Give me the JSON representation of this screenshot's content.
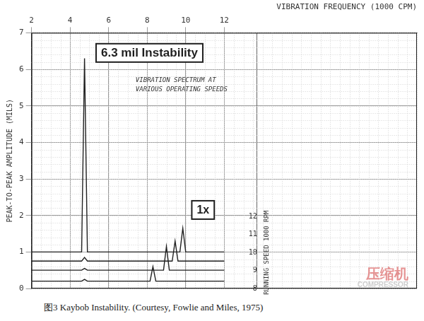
{
  "chart_data": {
    "type": "line",
    "caption": "图3 Kaybob Instability. (Courtesy, Fowlie and Miles, 1975)",
    "x_label": "VIBRATION FREQUENCY (1000 CPM)",
    "y_label": "PEAK-TO-PEAK AMPLITUDE (MILS)",
    "y2_label": "RUNNING SPEED 1000 RPM",
    "annotations": [
      "6.3 mil Instability",
      "1x"
    ],
    "note": [
      "VIBRATION SPECTRUM AT",
      "VARIOUS OPERATING SPEEDS"
    ],
    "watermark": [
      "压缩机",
      "COMPRESSOR"
    ],
    "color": "#1f1f1f",
    "marker": "none",
    "grid": true,
    "x": [
      2,
      4.6,
      4.75,
      4.9,
      8.15,
      8.3,
      8.45,
      8.85,
      9.0,
      9.15,
      9.3,
      9.45,
      9.6,
      9.7,
      9.85,
      10.0,
      12
    ],
    "series": [
      {
        "values": [
          1.0,
          1.0,
          6.3,
          1.0,
          1.0,
          1.0,
          1.0,
          1.0,
          1.0,
          1.0,
          1.0,
          1.0,
          1.0,
          1.0,
          1.65,
          1.0,
          1.0
        ]
      },
      {
        "values": [
          0.75,
          0.75,
          0.85,
          0.75,
          0.75,
          0.75,
          0.75,
          0.75,
          0.75,
          0.75,
          0.75,
          1.3,
          0.75,
          0.75,
          0.75,
          0.75,
          0.75
        ]
      },
      {
        "values": [
          0.5,
          0.5,
          0.55,
          0.5,
          0.5,
          0.5,
          0.5,
          0.5,
          1.15,
          0.5,
          0.5,
          0.5,
          0.5,
          0.5,
          0.5,
          0.5,
          0.5
        ]
      },
      {
        "values": [
          0.2,
          0.2,
          0.25,
          0.2,
          0.2,
          0.6,
          0.2,
          0.2,
          0.2,
          0.2,
          0.2,
          0.2,
          0.2,
          0.2,
          0.2,
          0.2,
          0.2
        ]
      }
    ],
    "xlim": [
      2,
      22
    ],
    "xticks": [
      2,
      4,
      6,
      8,
      10,
      12
    ],
    "ylim": [
      0,
      7
    ],
    "yticks": [
      0,
      1,
      2,
      3,
      4,
      5,
      6,
      7
    ],
    "y2lim": [
      8,
      22.25
    ],
    "y2ticks": [
      8,
      9,
      10,
      11,
      12
    ]
  }
}
